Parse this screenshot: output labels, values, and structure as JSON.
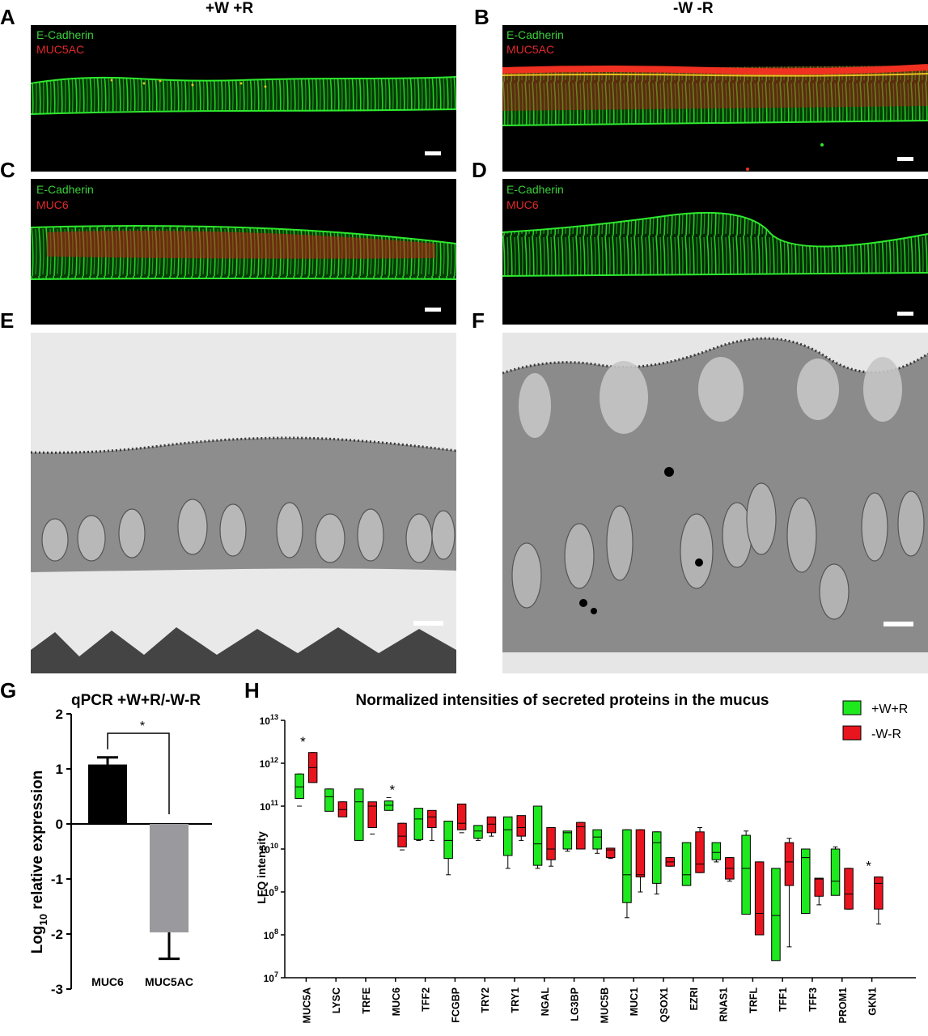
{
  "panels": {
    "A": {
      "letter": "A",
      "header": "+W +R",
      "green": "E-Cadherin",
      "red": "MUC5AC"
    },
    "B": {
      "letter": "B",
      "header": "-W -R",
      "green": "E-Cadherin",
      "red": "MUC5AC"
    },
    "C": {
      "letter": "C",
      "green": "E-Cadherin",
      "red": "MUC6"
    },
    "D": {
      "letter": "D",
      "green": "E-Cadherin",
      "red": "MUC6"
    },
    "E": {
      "letter": "E"
    },
    "F": {
      "letter": "F"
    },
    "G": {
      "letter": "G"
    },
    "H": {
      "letter": "H"
    }
  },
  "colors": {
    "green": "#1ee81e",
    "red": "#e8141e",
    "black": "#000000",
    "grey": "#9a9a9e"
  },
  "chart_data": [
    {
      "type": "bar",
      "title": "qPCR +W+R/-W-R",
      "ylabel": "Log10 relative expression",
      "ylabel_main": "Log",
      "ylabel_sub": "10",
      "ylabel_rest": " relative expression",
      "categories": [
        "MUC6",
        "MUC5AC"
      ],
      "values": [
        1.08,
        -1.97
      ],
      "errors": [
        0.13,
        0.48
      ],
      "bar_colors": [
        "#000000",
        "#9a9a9e"
      ],
      "ylim": [
        -3,
        2
      ],
      "yticks": [
        "2",
        "1",
        "0",
        "-1",
        "-2",
        "-3"
      ],
      "significance": "*"
    },
    {
      "type": "box",
      "title": "Normalized intensities of secreted proteins in the mucus",
      "ylabel": "LFQ intensity",
      "yscale": "log",
      "ylim": [
        10000000.0,
        10000000000000.0
      ],
      "yticks": [
        {
          "base": "10",
          "exp": "13"
        },
        {
          "base": "10",
          "exp": "12"
        },
        {
          "base": "10",
          "exp": "11"
        },
        {
          "base": "10",
          "exp": "10"
        },
        {
          "base": "10",
          "exp": "9"
        },
        {
          "base": "10",
          "exp": "8"
        },
        {
          "base": "10",
          "exp": "7"
        }
      ],
      "legend": [
        {
          "name": "+W+R",
          "color": "#1ee81e"
        },
        {
          "name": "-W-R",
          "color": "#e8141e"
        }
      ],
      "categories": [
        "MUC5A",
        "LYSC",
        "TRFE",
        "MUC6",
        "TFF2",
        "FCGBP",
        "TRY2",
        "TRY1",
        "NGAL",
        "LG3BP",
        "MUC5B",
        "MUC1",
        "QSOX1",
        "EZRI",
        "RNAS1",
        "TRFL",
        "TFF1",
        "TFF3",
        "PROM1",
        "GKN1"
      ],
      "significant": [
        "MUC5A",
        "MUC6",
        "GKN1"
      ],
      "series": [
        {
          "name": "+W+R",
          "color": "#1ee81e",
          "boxes": [
            [
              11.0,
              11.18,
              11.45,
              11.75,
              11.75
            ],
            [
              11.1,
              10.88,
              11.22,
              11.4,
              11.4
            ],
            [
              10.45,
              10.2,
              11.1,
              11.4,
              10.2
            ],
            [
              11.12,
              10.9,
              11.02,
              11.12,
              11.2
            ],
            [
              10.65,
              10.22,
              10.7,
              10.95,
              10.2
            ],
            [
              10.2,
              9.78,
              10.2,
              10.65,
              9.4
            ],
            [
              10.42,
              10.25,
              10.42,
              10.55,
              10.2
            ],
            [
              10.5,
              9.85,
              10.45,
              10.75,
              9.55
            ],
            [
              10.12,
              9.62,
              10.12,
              11.0,
              9.55
            ],
            [
              10.38,
              10.0,
              10.38,
              10.42,
              9.95
            ],
            [
              10.3,
              10.0,
              10.28,
              10.45,
              9.9
            ],
            [
              10.45,
              8.75,
              9.4,
              10.45,
              8.4
            ],
            [
              10.4,
              9.2,
              10.15,
              10.4,
              8.95
            ],
            [
              10.15,
              9.15,
              9.4,
              10.15,
              9.15
            ],
            [
              10.02,
              9.75,
              9.92,
              10.15,
              9.7
            ],
            [
              10.42,
              8.48,
              9.55,
              10.32,
              9.0
            ],
            [
              9.5,
              7.4,
              8.45,
              9.55,
              7.75
            ],
            [
              10.0,
              8.5,
              9.8,
              10.0,
              8.95
            ],
            [
              10.05,
              8.92,
              9.25,
              10.0,
              8.95
            ],
            null
          ]
        },
        {
          "name": "-W-R",
          "color": "#e8141e",
          "boxes": [
            [
              11.75,
              11.55,
              11.9,
              12.25,
              12.25
            ],
            [
              10.85,
              10.75,
              10.92,
              11.1,
              11.1
            ],
            [
              10.35,
              10.5,
              11.0,
              11.1,
              10.5
            ],
            [
              9.98,
              10.05,
              10.3,
              10.6,
              10.6
            ],
            [
              10.75,
              10.5,
              10.75,
              10.9,
              10.2
            ],
            [
              10.38,
              10.45,
              10.6,
              11.05,
              10.45
            ],
            [
              10.7,
              10.38,
              10.58,
              10.75,
              10.3
            ],
            [
              10.75,
              10.3,
              10.5,
              10.78,
              10.2
            ],
            [
              10.5,
              9.75,
              10.0,
              10.5,
              9.6
            ],
            [
              10.62,
              10.0,
              10.52,
              10.62,
              10.0
            ],
            [
              10.02,
              9.8,
              9.98,
              10.02,
              9.78
            ],
            [
              10.45,
              9.35,
              9.4,
              10.45,
              9.0
            ],
            [
              9.8,
              9.6,
              9.7,
              9.8,
              9.6
            ],
            [
              10.5,
              9.45,
              9.65,
              10.4,
              9.45
            ],
            [
              9.8,
              9.3,
              9.55,
              9.8,
              9.25
            ],
            [
              9.7,
              8.0,
              8.5,
              9.7,
              8.1
            ],
            [
              10.25,
              9.15,
              9.7,
              10.15,
              7.72
            ],
            [
              9.32,
              8.9,
              9.3,
              9.32,
              8.7
            ],
            [
              9.55,
              8.6,
              8.95,
              9.55,
              8.6
            ],
            [
              9.35,
              8.6,
              9.2,
              9.35,
              8.25
            ]
          ]
        }
      ]
    }
  ]
}
